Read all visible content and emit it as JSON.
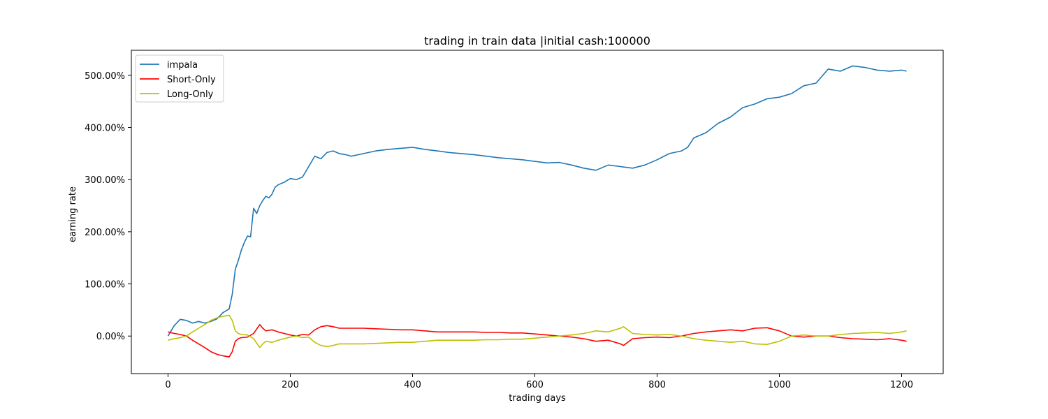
{
  "chart_data": {
    "type": "line",
    "title": "trading in train data |initial cash:100000",
    "xlabel": "trading days",
    "ylabel": "earning rate",
    "xlim": [
      -60,
      1268
    ],
    "ylim": [
      -72,
      548
    ],
    "xticks": [
      0,
      200,
      400,
      600,
      800,
      1000,
      1200
    ],
    "xtick_labels": [
      "0",
      "200",
      "400",
      "600",
      "800",
      "1000",
      "1200"
    ],
    "yticks": [
      0,
      100,
      200,
      300,
      400,
      500
    ],
    "ytick_labels": [
      "0.00%",
      "100.00%",
      "200.00%",
      "300.00%",
      "400.00%",
      "500.00%"
    ],
    "grid": false,
    "legend_position": "top-left",
    "series": [
      {
        "name": "impala",
        "color": "#1f77b4",
        "x": [
          0,
          10,
          20,
          30,
          40,
          50,
          60,
          70,
          80,
          90,
          100,
          105,
          110,
          115,
          120,
          125,
          130,
          135,
          140,
          145,
          150,
          155,
          160,
          165,
          170,
          175,
          180,
          190,
          200,
          210,
          220,
          230,
          240,
          250,
          260,
          270,
          280,
          290,
          300,
          320,
          340,
          360,
          380,
          400,
          420,
          440,
          460,
          480,
          500,
          520,
          540,
          560,
          580,
          600,
          620,
          640,
          660,
          680,
          700,
          720,
          740,
          760,
          780,
          800,
          820,
          840,
          850,
          860,
          880,
          900,
          920,
          940,
          960,
          980,
          1000,
          1020,
          1040,
          1060,
          1080,
          1100,
          1120,
          1140,
          1160,
          1180,
          1200,
          1208
        ],
        "y": [
          0,
          20,
          32,
          30,
          25,
          28,
          25,
          28,
          33,
          45,
          52,
          80,
          128,
          145,
          165,
          180,
          192,
          190,
          245,
          235,
          250,
          260,
          268,
          265,
          272,
          285,
          290,
          295,
          302,
          300,
          305,
          325,
          345,
          340,
          352,
          355,
          350,
          348,
          345,
          350,
          355,
          358,
          360,
          362,
          358,
          355,
          352,
          350,
          348,
          345,
          342,
          340,
          338,
          335,
          332,
          333,
          328,
          322,
          318,
          328,
          325,
          322,
          328,
          338,
          350,
          355,
          362,
          380,
          390,
          408,
          420,
          438,
          445,
          455,
          458,
          465,
          480,
          485,
          512,
          508,
          518,
          515,
          510,
          508,
          510,
          508
        ]
      },
      {
        "name": "Short-Only",
        "color": "#ff0000",
        "x": [
          0,
          10,
          20,
          30,
          40,
          50,
          60,
          70,
          80,
          90,
          100,
          105,
          110,
          115,
          120,
          130,
          140,
          150,
          155,
          160,
          170,
          180,
          190,
          200,
          210,
          220,
          230,
          240,
          250,
          260,
          270,
          280,
          300,
          320,
          340,
          360,
          380,
          400,
          420,
          440,
          460,
          480,
          500,
          520,
          540,
          560,
          580,
          600,
          620,
          640,
          660,
          680,
          700,
          720,
          740,
          745,
          760,
          780,
          800,
          820,
          840,
          860,
          880,
          900,
          920,
          940,
          960,
          980,
          1000,
          1020,
          1040,
          1060,
          1080,
          1100,
          1120,
          1140,
          1160,
          1180,
          1200,
          1208
        ],
        "y": [
          8,
          5,
          3,
          0,
          -8,
          -15,
          -22,
          -30,
          -35,
          -38,
          -40,
          -30,
          -10,
          -5,
          -3,
          -2,
          5,
          22,
          15,
          10,
          12,
          8,
          5,
          2,
          0,
          3,
          2,
          12,
          18,
          20,
          18,
          15,
          15,
          15,
          14,
          13,
          12,
          12,
          10,
          8,
          8,
          8,
          8,
          7,
          7,
          6,
          6,
          4,
          2,
          0,
          -2,
          -5,
          -10,
          -8,
          -15,
          -18,
          -5,
          -3,
          -2,
          -3,
          0,
          5,
          8,
          10,
          12,
          10,
          15,
          16,
          10,
          0,
          -2,
          0,
          0,
          -3,
          -5,
          -6,
          -7,
          -5,
          -8,
          -10
        ]
      },
      {
        "name": "Long-Only",
        "color": "#bfbf00",
        "x": [
          0,
          10,
          20,
          30,
          40,
          50,
          60,
          70,
          80,
          90,
          100,
          105,
          110,
          115,
          120,
          130,
          140,
          150,
          155,
          160,
          170,
          180,
          190,
          200,
          210,
          220,
          230,
          240,
          250,
          260,
          270,
          280,
          300,
          320,
          340,
          360,
          380,
          400,
          420,
          440,
          460,
          480,
          500,
          520,
          540,
          560,
          580,
          600,
          620,
          640,
          660,
          680,
          700,
          720,
          740,
          745,
          760,
          780,
          800,
          820,
          840,
          860,
          880,
          900,
          920,
          940,
          960,
          980,
          1000,
          1020,
          1040,
          1060,
          1080,
          1100,
          1120,
          1140,
          1160,
          1180,
          1200,
          1208
        ],
        "y": [
          -8,
          -5,
          -3,
          0,
          8,
          15,
          22,
          30,
          35,
          38,
          40,
          30,
          10,
          5,
          3,
          2,
          -5,
          -22,
          -15,
          -10,
          -12,
          -8,
          -5,
          -2,
          0,
          -3,
          -2,
          -12,
          -18,
          -20,
          -18,
          -15,
          -15,
          -15,
          -14,
          -13,
          -12,
          -12,
          -10,
          -8,
          -8,
          -8,
          -8,
          -7,
          -7,
          -6,
          -6,
          -4,
          -2,
          0,
          2,
          5,
          10,
          8,
          15,
          18,
          5,
          3,
          2,
          3,
          0,
          -5,
          -8,
          -10,
          -12,
          -10,
          -15,
          -16,
          -10,
          0,
          2,
          0,
          0,
          3,
          5,
          6,
          7,
          5,
          8,
          10
        ]
      }
    ]
  }
}
